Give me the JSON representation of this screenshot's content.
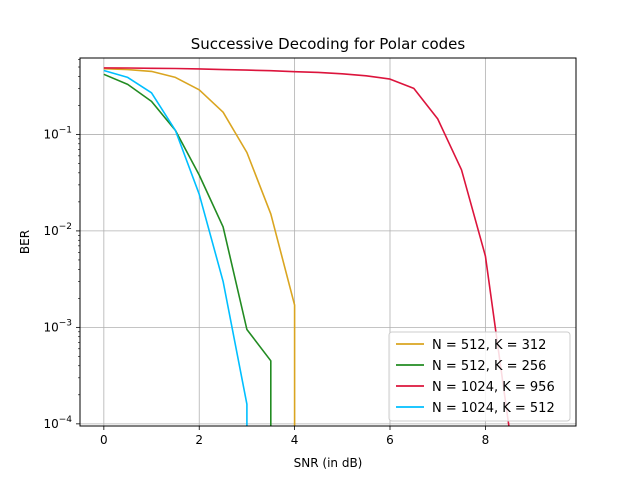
{
  "chart_data": {
    "type": "line",
    "title": "Successive Decoding for Polar codes",
    "xlabel": "SNR (in dB)",
    "ylabel": "BER",
    "xlim": [
      -0.5,
      9.9
    ],
    "ylim": [
      9.5e-05,
      0.62
    ],
    "yscale": "log",
    "grid": true,
    "legend_position": "bottom-right",
    "x_ticks": [
      {
        "value": 0,
        "label": "0"
      },
      {
        "value": 2,
        "label": "2"
      },
      {
        "value": 4,
        "label": "4"
      },
      {
        "value": 6,
        "label": "6"
      },
      {
        "value": 8,
        "label": "8"
      }
    ],
    "y_ticks": [
      {
        "value": 0.0001,
        "base": "10",
        "exp": "−4"
      },
      {
        "value": 0.001,
        "base": "10",
        "exp": "−3"
      },
      {
        "value": 0.01,
        "base": "10",
        "exp": "−2"
      },
      {
        "value": 0.1,
        "base": "10",
        "exp": "−1"
      }
    ],
    "series": [
      {
        "name": "N = 512, K = 312",
        "color": "#DAA520",
        "points": [
          [
            0,
            0.48
          ],
          [
            0.5,
            0.47
          ],
          [
            1,
            0.45
          ],
          [
            1.5,
            0.39
          ],
          [
            2,
            0.29
          ],
          [
            2.5,
            0.17
          ],
          [
            3,
            0.065
          ],
          [
            3.5,
            0.015
          ],
          [
            4,
            0.0017
          ],
          [
            4,
            9e-05
          ]
        ]
      },
      {
        "name": "N = 512, K = 256",
        "color": "#228B22",
        "points": [
          [
            0,
            0.42
          ],
          [
            0.5,
            0.33
          ],
          [
            1,
            0.22
          ],
          [
            1.5,
            0.11
          ],
          [
            2,
            0.038
          ],
          [
            2.5,
            0.011
          ],
          [
            3,
            0.00095
          ],
          [
            3.5,
            0.00045
          ],
          [
            3.5,
            9e-05
          ]
        ]
      },
      {
        "name": "N = 1024, K = 956",
        "color": "#DC143C",
        "points": [
          [
            0,
            0.49
          ],
          [
            0.5,
            0.488
          ],
          [
            1,
            0.485
          ],
          [
            1.5,
            0.482
          ],
          [
            2,
            0.478
          ],
          [
            2.5,
            0.47
          ],
          [
            3,
            0.465
          ],
          [
            3.5,
            0.458
          ],
          [
            4,
            0.447
          ],
          [
            4.5,
            0.44
          ],
          [
            5,
            0.425
          ],
          [
            5.5,
            0.405
          ],
          [
            6,
            0.375
          ],
          [
            6.5,
            0.3
          ],
          [
            7,
            0.145
          ],
          [
            7.5,
            0.043
          ],
          [
            8,
            0.0055
          ],
          [
            8.5,
            9e-05
          ]
        ]
      },
      {
        "name": "N = 1024, K = 512",
        "color": "#00BFFF",
        "points": [
          [
            0,
            0.46
          ],
          [
            0.5,
            0.39
          ],
          [
            1,
            0.27
          ],
          [
            1.5,
            0.11
          ],
          [
            2,
            0.024
          ],
          [
            2.5,
            0.003
          ],
          [
            3,
            0.00016
          ],
          [
            3,
            9e-05
          ]
        ]
      }
    ]
  }
}
